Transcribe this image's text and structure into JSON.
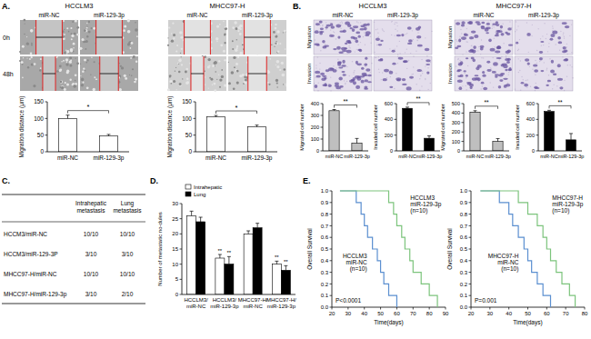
{
  "panel_labels": [
    "A.",
    "B.",
    "C.",
    "D.",
    "E."
  ],
  "scratch_images": {
    "rows": [
      "0h",
      "48h"
    ],
    "groups": [
      {
        "title": "HCCLM3",
        "columns": [
          "miR-NC",
          "miR-129-3p"
        ]
      },
      {
        "title": "MHCC97-H",
        "columns": [
          "miR-NC",
          "miR-129-3p"
        ]
      }
    ]
  },
  "transwell_images": {
    "groups": [
      {
        "title": "HCCLM3",
        "columns": [
          "miR-NC",
          "miR-129-3p"
        ],
        "rows": [
          "Migration",
          "Invasion"
        ]
      },
      {
        "title": "MHCC97-H",
        "columns": [
          "miR-NC",
          "miR-129-3p"
        ],
        "rows": [
          "Migration",
          "Invasion"
        ]
      }
    ]
  },
  "table": {
    "header": [
      "Intrahepatic metastasis",
      "Lung metastasis"
    ],
    "rows": [
      [
        "HCCM3/miR-NC",
        "10/10",
        "10/10"
      ],
      [
        "HCCM3/miR-129-3P",
        "3/10",
        "3/10"
      ],
      [
        "MHCC97-H/miR-NC",
        "10/10",
        "10/10"
      ],
      [
        "MHCC97-H/miR-129-3p",
        "3/10",
        "2/10"
      ]
    ]
  },
  "chart_data": [
    {
      "type": "bar",
      "y_label": "Migration distance (μm)",
      "categories": [
        "miR-NC",
        "miR-129-3p"
      ],
      "values": [
        100,
        48
      ],
      "errors": [
        10,
        4
      ],
      "color": "#ffffff",
      "ylim": [
        0,
        150
      ],
      "yticks": [
        0,
        50,
        100,
        150
      ],
      "annotation": "*"
    },
    {
      "type": "bar",
      "y_label": "Migration distance (μm)",
      "categories": [
        "miR-NC",
        "miR-129-3p"
      ],
      "values": [
        105,
        75
      ],
      "errors": [
        4,
        5
      ],
      "color": "#ffffff",
      "ylim": [
        0,
        150
      ],
      "yticks": [
        0,
        50,
        100,
        150
      ],
      "annotation": "*"
    },
    {
      "type": "bar",
      "y_label": "Migrated cell number",
      "categories": [
        "miR-NC",
        "miR-129-3p"
      ],
      "values": [
        340,
        65
      ],
      "errors": [
        10,
        40
      ],
      "color": "#bfbfbf",
      "ylim": [
        0,
        400
      ],
      "yticks": [
        0,
        100,
        200,
        300,
        400
      ],
      "annotation": "**"
    },
    {
      "type": "bar",
      "y_label": "Invaded cell number",
      "categories": [
        "miR-NC",
        "miR-129-3p"
      ],
      "values": [
        540,
        160
      ],
      "errors": [
        15,
        30
      ],
      "color": "#000000",
      "ylim": [
        0,
        600
      ],
      "yticks": [
        0,
        200,
        400,
        600
      ],
      "annotation": "**"
    },
    {
      "type": "bar",
      "y_label": "Migrated cell number",
      "categories": [
        "miR-NC",
        "miR-129-3p"
      ],
      "values": [
        410,
        100
      ],
      "errors": [
        15,
        30
      ],
      "color": "#bfbfbf",
      "ylim": [
        0,
        500
      ],
      "yticks": [
        0,
        100,
        200,
        300,
        400,
        500
      ],
      "annotation": "**"
    },
    {
      "type": "bar",
      "y_label": "Invaded cell number",
      "categories": [
        "miR-NC",
        "miR-129-3p"
      ],
      "values": [
        500,
        140
      ],
      "errors": [
        15,
        80
      ],
      "color": "#000000",
      "ylim": [
        0,
        600
      ],
      "yticks": [
        0,
        200,
        400,
        600
      ],
      "annotation": "**"
    },
    {
      "type": "bar",
      "y_label": "Number of metastatic no-dules",
      "categories": [
        "HCCLM3/ miR-NC",
        "HCCLM3/ miR-129-3p",
        "MHCC97-H/ miR-NC",
        "MHCC97-H/ miR-129-3p"
      ],
      "legend": "top-left",
      "ylim": [
        0,
        30
      ],
      "yticks": [
        0,
        5,
        10,
        15,
        20,
        25,
        30
      ],
      "series": [
        {
          "name": "Intrahepatic",
          "color": "#ffffff",
          "values": [
            26,
            12,
            20,
            10
          ],
          "errors": [
            1.5,
            1.2,
            1,
            1
          ],
          "annotations": [
            null,
            "**",
            null,
            "**"
          ]
        },
        {
          "name": "Lung",
          "color": "#000000",
          "values": [
            24,
            10,
            22,
            8
          ],
          "errors": [
            1.5,
            2.5,
            1.5,
            1.5
          ],
          "annotations": [
            null,
            "**",
            null,
            "**"
          ]
        }
      ]
    },
    {
      "type": "line",
      "x_label": "Time(days)",
      "y_label": "Overall Survival",
      "xlim": [
        20,
        90
      ],
      "xticks": [
        20,
        30,
        40,
        50,
        60,
        70,
        80,
        90
      ],
      "ylim": [
        0,
        1
      ],
      "yticks": [
        {
          "value": 0,
          "label": "0.0"
        },
        {
          "value": 0.1,
          "label": "0.1"
        },
        {
          "value": 0.2,
          "label": "0.2"
        },
        {
          "value": 0.3,
          "label": "0.3"
        },
        {
          "value": 0.4,
          "label": "0.4"
        },
        {
          "value": 0.5,
          "label": "0.5"
        },
        {
          "value": 0.6,
          "label": "0.6"
        },
        {
          "value": 0.7,
          "label": "0.7"
        },
        {
          "value": 0.8,
          "label": "0.8"
        },
        {
          "value": 0.9,
          "label": "0.9"
        },
        {
          "value": 1,
          "label": "1.0"
        }
      ],
      "annotation": "P<0.0001",
      "series": [
        {
          "name": "HCCLM3 miR-NC (n=10)",
          "color": "#5b8fd0",
          "line_style": "step",
          "x": [
            25,
            35,
            38,
            40,
            42,
            45,
            48,
            50,
            52,
            55,
            60
          ],
          "values": [
            1,
            0.9,
            0.8,
            0.7,
            0.6,
            0.5,
            0.4,
            0.3,
            0.2,
            0.1,
            0
          ]
        },
        {
          "name": "HCCLM3 miR-129-3p (n=10)",
          "color": "#7cc47c",
          "line_style": "step",
          "x": [
            25,
            55,
            58,
            60,
            63,
            65,
            68,
            70,
            75,
            80,
            85
          ],
          "values": [
            1,
            0.9,
            0.8,
            0.7,
            0.6,
            0.5,
            0.4,
            0.3,
            0.2,
            0.1,
            0
          ]
        }
      ]
    },
    {
      "type": "line",
      "x_label": "Time(days)",
      "y_label": "Overall Survival",
      "xlim": [
        20,
        80
      ],
      "xticks": [
        20,
        30,
        40,
        50,
        60,
        70,
        80
      ],
      "ylim": [
        0,
        1
      ],
      "yticks": [
        {
          "value": 0,
          "label": "0.0"
        },
        {
          "value": 0.1,
          "label": "0.1"
        },
        {
          "value": 0.2,
          "label": "0.2"
        },
        {
          "value": 0.3,
          "label": "0.3"
        },
        {
          "value": 0.4,
          "label": "0.4"
        },
        {
          "value": 0.5,
          "label": "0.5"
        },
        {
          "value": 0.6,
          "label": "0.6"
        },
        {
          "value": 0.7,
          "label": "0.7"
        },
        {
          "value": 0.8,
          "label": "0.8"
        },
        {
          "value": 0.9,
          "label": "0.9"
        },
        {
          "value": 1,
          "label": "1.0"
        }
      ],
      "annotation": "P=0.001",
      "series": [
        {
          "name": "MHCC97-H miR-NC (n=10)",
          "color": "#5b8fd0",
          "line_style": "step",
          "x": [
            25,
            35,
            40,
            42,
            45,
            48,
            50,
            52,
            55,
            58,
            62
          ],
          "values": [
            1,
            0.9,
            0.8,
            0.7,
            0.6,
            0.5,
            0.4,
            0.3,
            0.2,
            0.1,
            0
          ]
        },
        {
          "name": "MHCC97-H miR-129-3p (n=10)",
          "color": "#7cc47c",
          "line_style": "step",
          "x": [
            25,
            45,
            50,
            55,
            58,
            60,
            62,
            65,
            68,
            72,
            75
          ],
          "values": [
            1,
            0.9,
            0.8,
            0.7,
            0.6,
            0.5,
            0.4,
            0.3,
            0.2,
            0.1,
            0
          ]
        }
      ]
    }
  ]
}
